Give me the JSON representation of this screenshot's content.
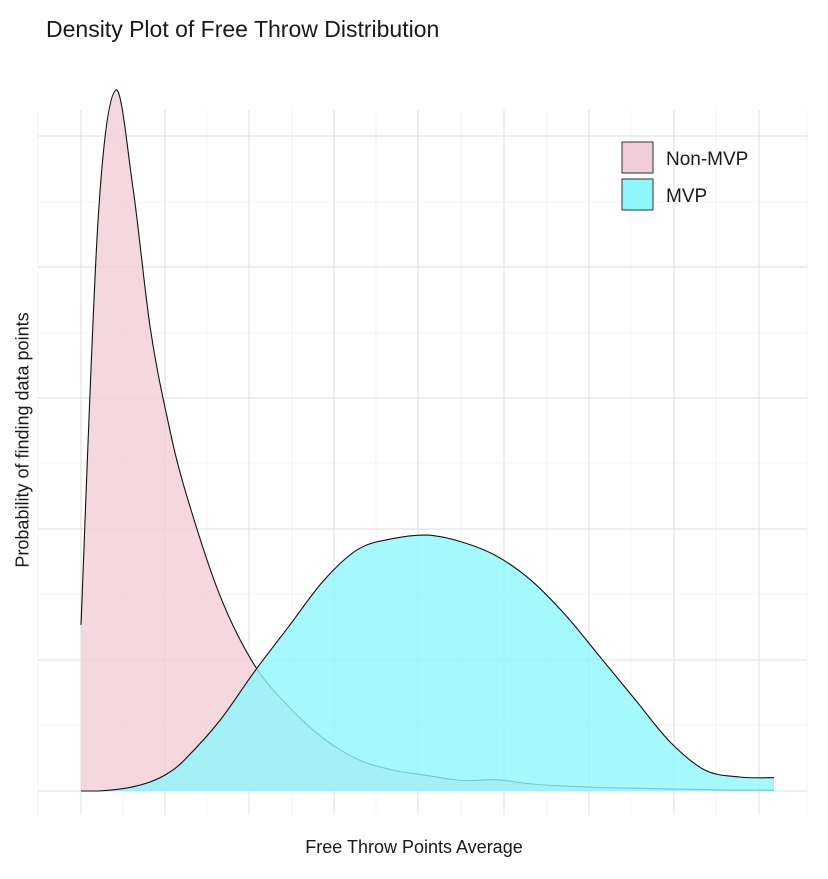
{
  "chart_data": {
    "type": "area",
    "title": "Density Plot of Free Throw Distribution",
    "xlabel": "Free Throw Points Average",
    "ylabel": "Probability of finding data points",
    "xlim": [
      0,
      1
    ],
    "ylim": [
      0,
      1
    ],
    "grid": true,
    "legend": "top-right",
    "x": [
      0.0,
      0.025,
      0.05,
      0.075,
      0.1,
      0.125,
      0.15,
      0.2,
      0.25,
      0.3,
      0.35,
      0.4,
      0.45,
      0.5,
      0.55,
      0.6,
      0.65,
      0.7,
      0.75,
      0.8,
      0.85,
      0.9,
      0.95,
      1.0
    ],
    "series": [
      {
        "name": "Non-MVP",
        "color": "#f2cdd6",
        "values": [
          0.237,
          0.82,
          1.0,
          0.86,
          0.66,
          0.53,
          0.43,
          0.28,
          0.18,
          0.12,
          0.075,
          0.045,
          0.03,
          0.022,
          0.015,
          0.016,
          0.01,
          0.007,
          0.005,
          0.004,
          0.003,
          0.002,
          0.001,
          0.001
        ]
      },
      {
        "name": "MVP",
        "color": "#8ff6fb",
        "values": [
          0.0,
          0.0,
          0.002,
          0.006,
          0.013,
          0.025,
          0.045,
          0.1,
          0.17,
          0.235,
          0.3,
          0.345,
          0.36,
          0.365,
          0.355,
          0.335,
          0.3,
          0.25,
          0.19,
          0.13,
          0.07,
          0.03,
          0.02,
          0.019
        ]
      }
    ]
  }
}
